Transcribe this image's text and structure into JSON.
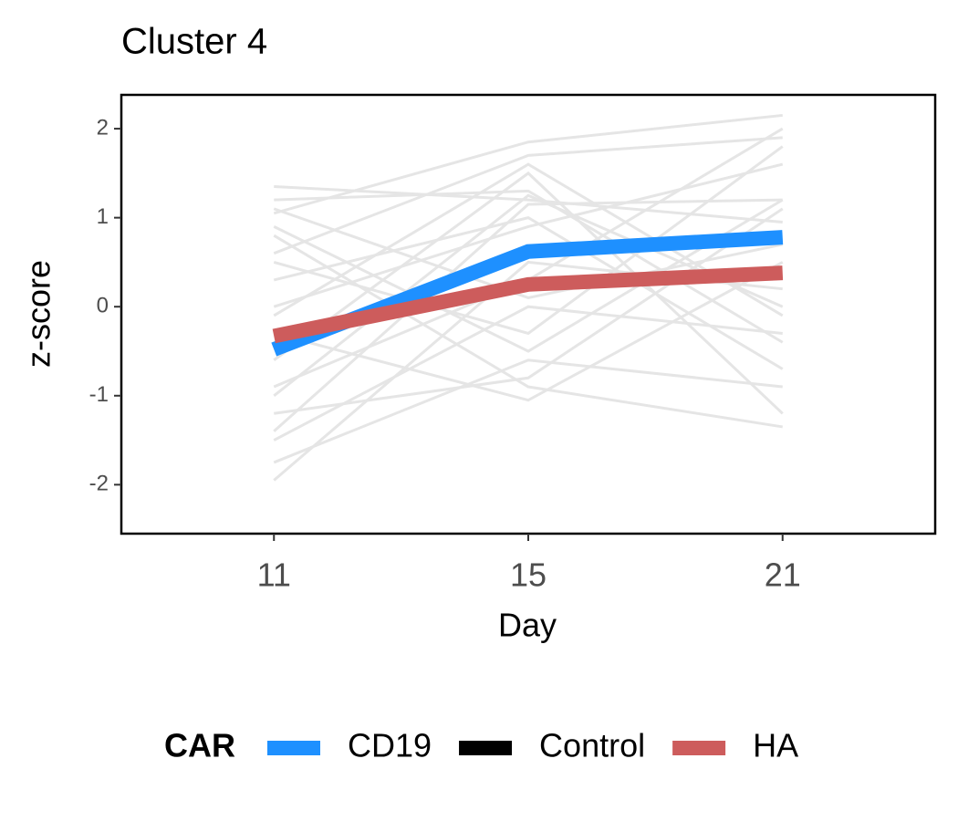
{
  "chart_data": {
    "type": "line",
    "title": "Cluster 4",
    "x_label": "Day",
    "y_label": "z-score",
    "categories": [
      "11",
      "15",
      "21"
    ],
    "ylim": [
      -2.55,
      2.38
    ],
    "yticks": [
      -2,
      -1,
      0,
      1,
      2
    ],
    "series": [
      {
        "name": "CD19",
        "color": "#1e90ff",
        "values": [
          -0.48,
          0.62,
          0.78
        ]
      },
      {
        "name": "Control",
        "color": "#000000",
        "values": [
          null,
          null,
          null
        ]
      },
      {
        "name": "HA",
        "color": "#cd5c5c",
        "values": [
          -0.33,
          0.25,
          0.38
        ]
      }
    ],
    "background_color": "#e5e5e5",
    "background_lines": [
      [
        1.35,
        1.2,
        0.95
      ],
      [
        1.2,
        1.3,
        -0.4
      ],
      [
        1.05,
        1.85,
        2.15
      ],
      [
        0.9,
        -0.5,
        1.2
      ],
      [
        0.6,
        1.7,
        1.9
      ],
      [
        0.3,
        1.0,
        -0.7
      ],
      [
        0.0,
        0.9,
        1.6
      ],
      [
        -0.3,
        -1.05,
        0.5
      ],
      [
        -0.6,
        1.5,
        -1.2
      ],
      [
        -0.9,
        0.3,
        2.0
      ],
      [
        -1.2,
        -0.8,
        1.1
      ],
      [
        -1.5,
        0.0,
        -0.3
      ],
      [
        -1.75,
        -0.6,
        -0.9
      ],
      [
        -1.95,
        0.5,
        0.2
      ],
      [
        -1.4,
        1.15,
        1.2
      ],
      [
        0.8,
        -0.9,
        -1.35
      ],
      [
        1.1,
        0.1,
        0.7
      ],
      [
        -0.1,
        1.6,
        -0.1
      ],
      [
        0.5,
        -0.3,
        1.8
      ],
      [
        -1.0,
        1.25,
        0.0
      ]
    ],
    "legend_title": "CAR",
    "legend": "bottom"
  }
}
